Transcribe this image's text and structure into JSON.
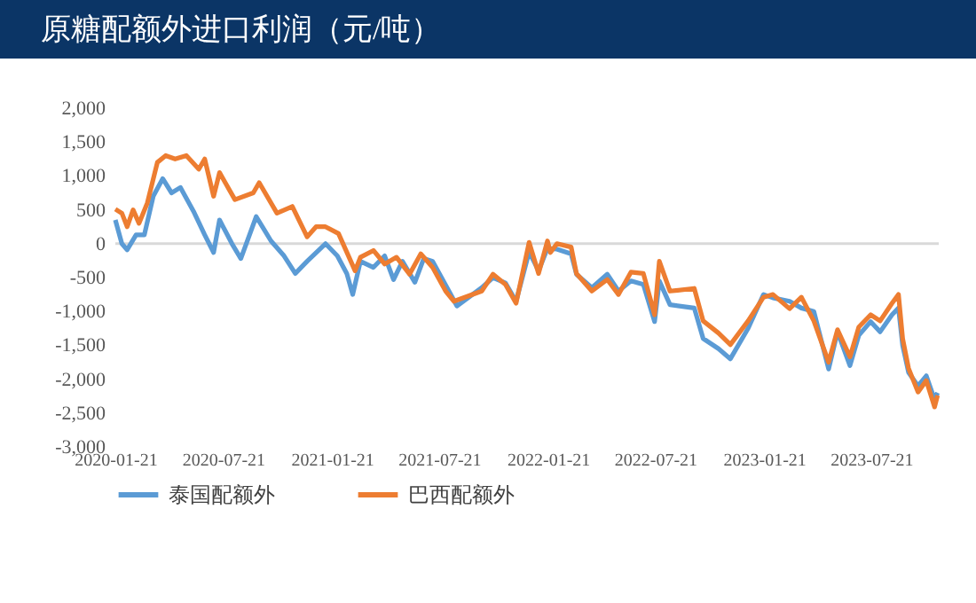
{
  "chart_data": {
    "type": "line",
    "title": "原糖配额外进口利润（元/吨）",
    "xlim": [
      "2020-01-21",
      "2023-11-12"
    ],
    "xticks": [
      "2020-01-21",
      "2020-07-21",
      "2021-01-21",
      "2021-07-21",
      "2022-01-21",
      "2022-07-21",
      "2023-01-21",
      "2023-07-21"
    ],
    "ylim": [
      -3000,
      2000
    ],
    "yticks": [
      {
        "value": -3000,
        "label": "-3,000"
      },
      {
        "value": -2500,
        "label": "-2,500"
      },
      {
        "value": -2000,
        "label": "-2,000"
      },
      {
        "value": -1500,
        "label": "-1,500"
      },
      {
        "value": -1000,
        "label": "-1,000"
      },
      {
        "value": -500,
        "label": "-500"
      },
      {
        "value": 0,
        "label": "0"
      },
      {
        "value": 500,
        "label": "500"
      },
      {
        "value": 1000,
        "label": "1,000"
      },
      {
        "value": 1500,
        "label": "1,500"
      },
      {
        "value": 2000,
        "label": "2,000"
      }
    ],
    "ref_lines": [
      {
        "axis": "y",
        "value": 0,
        "color": "#d9d9d9"
      }
    ],
    "legend": "bottom",
    "grid": false,
    "series": [
      {
        "name": "泰国配额外",
        "color": "#5b9bd5",
        "x": [
          "2020-01-21",
          "2020-02-01",
          "2020-02-10",
          "2020-02-25",
          "2020-03-10",
          "2020-03-25",
          "2020-04-10",
          "2020-04-25",
          "2020-05-10",
          "2020-06-01",
          "2020-06-20",
          "2020-07-05",
          "2020-07-15",
          "2020-08-05",
          "2020-08-20",
          "2020-09-15",
          "2020-10-10",
          "2020-11-01",
          "2020-11-20",
          "2020-12-10",
          "2021-01-10",
          "2021-01-30",
          "2021-02-15",
          "2021-02-25",
          "2021-03-10",
          "2021-04-01",
          "2021-04-20",
          "2021-05-05",
          "2021-05-20",
          "2021-06-10",
          "2021-06-25",
          "2021-07-10",
          "2021-08-01",
          "2021-08-20",
          "2021-10-01",
          "2021-10-20",
          "2021-11-10",
          "2021-11-28",
          "2021-12-20",
          "2022-01-05",
          "2022-01-20",
          "2022-02-05",
          "2022-03-01",
          "2022-03-10",
          "2022-04-05",
          "2022-05-01",
          "2022-05-20",
          "2022-06-10",
          "2022-07-01",
          "2022-07-20",
          "2022-07-28",
          "2022-08-15",
          "2022-09-25",
          "2022-10-10",
          "2022-11-05",
          "2022-11-25",
          "2022-12-25",
          "2023-01-20",
          "2023-02-05",
          "2023-03-05",
          "2023-03-25",
          "2023-04-15",
          "2023-05-10",
          "2023-05-25",
          "2023-06-15",
          "2023-06-30",
          "2023-07-20",
          "2023-08-05",
          "2023-08-25",
          "2023-09-05",
          "2023-09-12",
          "2023-09-22",
          "2023-10-08",
          "2023-10-22",
          "2023-11-05",
          "2023-11-10"
        ],
        "values": [
          350,
          0,
          -90,
          130,
          130,
          700,
          960,
          750,
          830,
          480,
          130,
          -130,
          350,
          0,
          -220,
          400,
          40,
          -180,
          -440,
          -260,
          0,
          -180,
          -440,
          -750,
          -260,
          -350,
          -180,
          -530,
          -260,
          -570,
          -220,
          -260,
          -610,
          -920,
          -650,
          -500,
          -580,
          -850,
          -120,
          -400,
          -70,
          -80,
          -150,
          -450,
          -650,
          -450,
          -700,
          -550,
          -600,
          -1150,
          -550,
          -900,
          -950,
          -1400,
          -1550,
          -1700,
          -1250,
          -750,
          -800,
          -850,
          -950,
          -1000,
          -1850,
          -1300,
          -1800,
          -1350,
          -1150,
          -1300,
          -1050,
          -950,
          -1500,
          -1900,
          -2100,
          -1950,
          -2300,
          -2200
        ]
      },
      {
        "name": "巴西配额外",
        "color": "#ed7d31",
        "x": [
          "2020-01-21",
          "2020-02-01",
          "2020-02-10",
          "2020-02-20",
          "2020-03-01",
          "2020-03-15",
          "2020-04-01",
          "2020-04-15",
          "2020-05-01",
          "2020-05-20",
          "2020-06-10",
          "2020-06-20",
          "2020-07-05",
          "2020-07-15",
          "2020-08-10",
          "2020-09-10",
          "2020-09-20",
          "2020-10-20",
          "2020-11-15",
          "2020-12-10",
          "2020-12-25",
          "2021-01-10",
          "2021-02-01",
          "2021-03-01",
          "2021-03-10",
          "2021-04-01",
          "2021-04-20",
          "2021-05-10",
          "2021-06-01",
          "2021-06-20",
          "2021-07-10",
          "2021-08-01",
          "2021-08-15",
          "2021-10-01",
          "2021-10-20",
          "2021-11-10",
          "2021-11-28",
          "2021-12-20",
          "2022-01-05",
          "2022-01-20",
          "2022-01-25",
          "2022-02-05",
          "2022-03-01",
          "2022-03-10",
          "2022-04-05",
          "2022-05-01",
          "2022-05-20",
          "2022-06-10",
          "2022-07-01",
          "2022-07-20",
          "2022-07-28",
          "2022-08-15",
          "2022-09-25",
          "2022-10-10",
          "2022-11-05",
          "2022-11-25",
          "2022-12-25",
          "2023-01-20",
          "2023-02-05",
          "2023-03-05",
          "2023-03-25",
          "2023-04-15",
          "2023-05-10",
          "2023-05-25",
          "2023-06-15",
          "2023-06-30",
          "2023-07-20",
          "2023-08-05",
          "2023-08-25",
          "2023-09-05",
          "2023-09-12",
          "2023-09-22",
          "2023-10-08",
          "2023-10-22",
          "2023-11-05",
          "2023-11-10"
        ],
        "values": [
          510,
          450,
          250,
          500,
          300,
          600,
          1200,
          1300,
          1250,
          1300,
          1100,
          1250,
          700,
          1050,
          650,
          750,
          900,
          450,
          550,
          100,
          250,
          250,
          150,
          -400,
          -200,
          -100,
          -300,
          -200,
          -450,
          -150,
          -350,
          -700,
          -850,
          -700,
          -450,
          -600,
          -880,
          20,
          -440,
          40,
          -130,
          0,
          -50,
          -440,
          -700,
          -530,
          -750,
          -420,
          -440,
          -1050,
          -260,
          -700,
          -660,
          -1140,
          -1320,
          -1490,
          -1140,
          -790,
          -750,
          -960,
          -790,
          -1140,
          -1750,
          -1270,
          -1670,
          -1230,
          -1050,
          -1140,
          -880,
          -750,
          -1400,
          -1840,
          -2190,
          -2020,
          -2410,
          -2240
        ]
      }
    ]
  }
}
